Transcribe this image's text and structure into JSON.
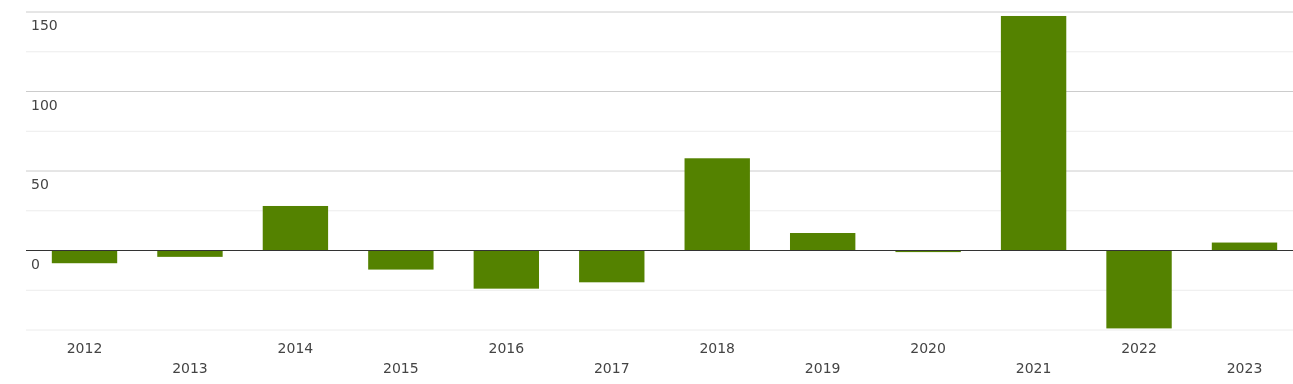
{
  "chart_data": {
    "type": "bar",
    "categories": [
      "2012",
      "2013",
      "2014",
      "2015",
      "2016",
      "2017",
      "2018",
      "2019",
      "2020",
      "2021",
      "2022",
      "2023"
    ],
    "values": [
      -8,
      -4,
      28,
      -12,
      -24,
      -20,
      58,
      11,
      -1,
      147.5,
      -49,
      5
    ],
    "color": "#548200",
    "ylim": [
      -50,
      150
    ],
    "yticks": [
      {
        "value": -50,
        "label": null
      },
      {
        "value": -25,
        "label": null
      },
      0,
      {
        "value": 25,
        "label": null
      },
      50,
      {
        "value": 75,
        "label": null
      },
      100,
      {
        "value": 125,
        "label": null
      },
      150
    ],
    "grid": "y"
  }
}
